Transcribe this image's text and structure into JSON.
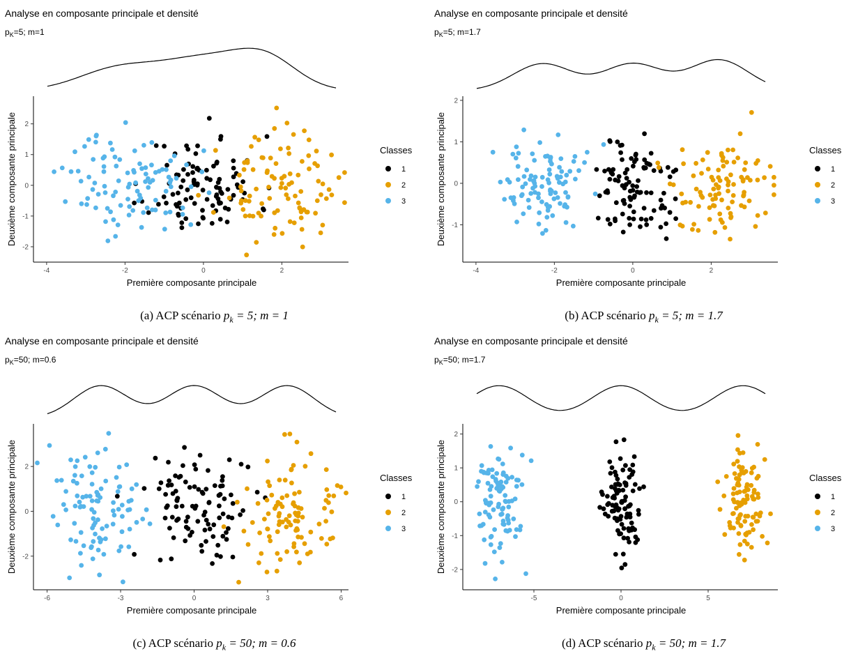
{
  "chart_data": [
    {
      "type": "scatter",
      "title": "Analyse en composante principale et densité",
      "subtitle_main": "p",
      "subtitle_sub": "K",
      "subtitle_rest": "=5; m=1",
      "xlabel": "Première composante principale",
      "ylabel": "Deuxième composante principale",
      "xlim": [
        -4.3,
        3.7
      ],
      "ylim": [
        -2.5,
        2.9
      ],
      "xticks": [
        -4,
        -2,
        0,
        2
      ],
      "yticks": [
        -2,
        -1,
        0,
        1,
        2
      ],
      "legend_title": "Classes",
      "legend_position": "right",
      "caption_prefix": "(a)  ACP scénario ",
      "caption_math": "p",
      "caption_math_sub": "k",
      "caption_math_rest": " = 5; m = 1",
      "density_peaks": [
        {
          "x": -2.2,
          "w": 1.0,
          "h": 0.55
        },
        {
          "x": 0.0,
          "w": 1.1,
          "h": 0.8
        },
        {
          "x": 1.6,
          "w": 0.8,
          "h": 0.75
        }
      ],
      "series": [
        {
          "name": "1",
          "color": "#000000",
          "center": [
            0,
            0
          ],
          "sd": [
            0.7,
            0.8
          ],
          "n": 100,
          "seed": 11
        },
        {
          "name": "2",
          "color": "#E69F00",
          "center": [
            1.9,
            -0.1
          ],
          "sd": [
            0.75,
            0.85
          ],
          "n": 100,
          "seed": 23
        },
        {
          "name": "3",
          "color": "#56B4E9",
          "center": [
            -1.8,
            0.1
          ],
          "sd": [
            0.85,
            0.8
          ],
          "n": 100,
          "seed": 37
        }
      ]
    },
    {
      "type": "scatter",
      "title": "Analyse en composante principale et densité",
      "subtitle_main": "p",
      "subtitle_sub": "K",
      "subtitle_rest": "=5; m=1.7",
      "xlabel": "Première composante principale",
      "ylabel": "Deuxième composante principale",
      "xlim": [
        -4.3,
        3.7
      ],
      "ylim": [
        -1.9,
        2.1
      ],
      "xticks": [
        -4,
        -2,
        0,
        2
      ],
      "yticks": [
        -1,
        0,
        1,
        2
      ],
      "legend_title": "Classes",
      "legend_position": "right",
      "caption_prefix": "(b)  ACP scénario ",
      "caption_math": "p",
      "caption_math_sub": "k",
      "caption_math_rest": " = 5; m = 1.7",
      "density_peaks": [
        {
          "x": -2.3,
          "w": 0.75,
          "h": 0.7
        },
        {
          "x": 0.0,
          "w": 0.75,
          "h": 0.7
        },
        {
          "x": 2.2,
          "w": 0.75,
          "h": 0.8
        }
      ],
      "series": [
        {
          "name": "1",
          "color": "#000000",
          "center": [
            0,
            -0.1
          ],
          "sd": [
            0.55,
            0.6
          ],
          "n": 100,
          "seed": 51
        },
        {
          "name": "2",
          "color": "#E69F00",
          "center": [
            2.2,
            -0.1
          ],
          "sd": [
            0.6,
            0.6
          ],
          "n": 100,
          "seed": 63
        },
        {
          "name": "3",
          "color": "#56B4E9",
          "center": [
            -2.3,
            -0.05
          ],
          "sd": [
            0.65,
            0.6
          ],
          "n": 100,
          "seed": 77
        }
      ]
    },
    {
      "type": "scatter",
      "title": "Analyse en composante principale et densité",
      "subtitle_main": "p",
      "subtitle_sub": "K",
      "subtitle_rest": "=50; m=0.6",
      "xlabel": "Première composante principale",
      "ylabel": "Deuxième composante principale",
      "xlim": [
        -6.5,
        6.3
      ],
      "ylim": [
        -3.5,
        3.9
      ],
      "xticks": [
        -6,
        -3,
        0,
        3,
        6
      ],
      "yticks": [
        -2,
        0,
        2
      ],
      "legend_title": "Classes",
      "legend_position": "right",
      "caption_prefix": "(c)  ACP scénario ",
      "caption_math": "p",
      "caption_math_sub": "k",
      "caption_math_rest": " = 50; m = 0.6",
      "density_peaks": [
        {
          "x": -3.8,
          "w": 1.1,
          "h": 0.85
        },
        {
          "x": 0.0,
          "w": 1.1,
          "h": 0.85
        },
        {
          "x": 3.8,
          "w": 1.1,
          "h": 0.85
        }
      ],
      "series": [
        {
          "name": "1",
          "color": "#000000",
          "center": [
            0,
            0
          ],
          "sd": [
            1.0,
            1.2
          ],
          "n": 100,
          "seed": 91
        },
        {
          "name": "2",
          "color": "#E69F00",
          "center": [
            3.9,
            0
          ],
          "sd": [
            1.0,
            1.3
          ],
          "n": 100,
          "seed": 103
        },
        {
          "name": "3",
          "color": "#56B4E9",
          "center": [
            -3.8,
            0
          ],
          "sd": [
            1.0,
            1.3
          ],
          "n": 100,
          "seed": 117
        }
      ]
    },
    {
      "type": "scatter",
      "title": "Analyse en composante principale et densité",
      "subtitle_main": "p",
      "subtitle_sub": "K",
      "subtitle_rest": "=50; m=1.7",
      "xlabel": "Première composante principale",
      "ylabel": "Deuxième composante principale",
      "xlim": [
        -9.0,
        9.0
      ],
      "ylim": [
        -2.6,
        2.3
      ],
      "xticks": [
        -5,
        0,
        5
      ],
      "yticks": [
        -2,
        -1,
        0,
        1,
        2
      ],
      "legend_title": "Classes",
      "legend_position": "right",
      "caption_prefix": "(d)  ACP scénario ",
      "caption_math": "p",
      "caption_math_sub": "k",
      "caption_math_rest": " = 50; m = 1.7",
      "density_peaks": [
        {
          "x": -7.0,
          "w": 1.7,
          "h": 0.85
        },
        {
          "x": 0.0,
          "w": 1.7,
          "h": 0.85
        },
        {
          "x": 7.0,
          "w": 1.7,
          "h": 0.85
        }
      ],
      "series": [
        {
          "name": "1",
          "color": "#000000",
          "center": [
            0,
            0
          ],
          "sd": [
            0.55,
            0.75
          ],
          "n": 100,
          "seed": 131
        },
        {
          "name": "2",
          "color": "#E69F00",
          "center": [
            7.0,
            0
          ],
          "sd": [
            0.55,
            0.75
          ],
          "n": 100,
          "seed": 149
        },
        {
          "name": "3",
          "color": "#56B4E9",
          "center": [
            -7.0,
            0
          ],
          "sd": [
            0.55,
            0.75
          ],
          "n": 100,
          "seed": 157
        }
      ]
    }
  ]
}
